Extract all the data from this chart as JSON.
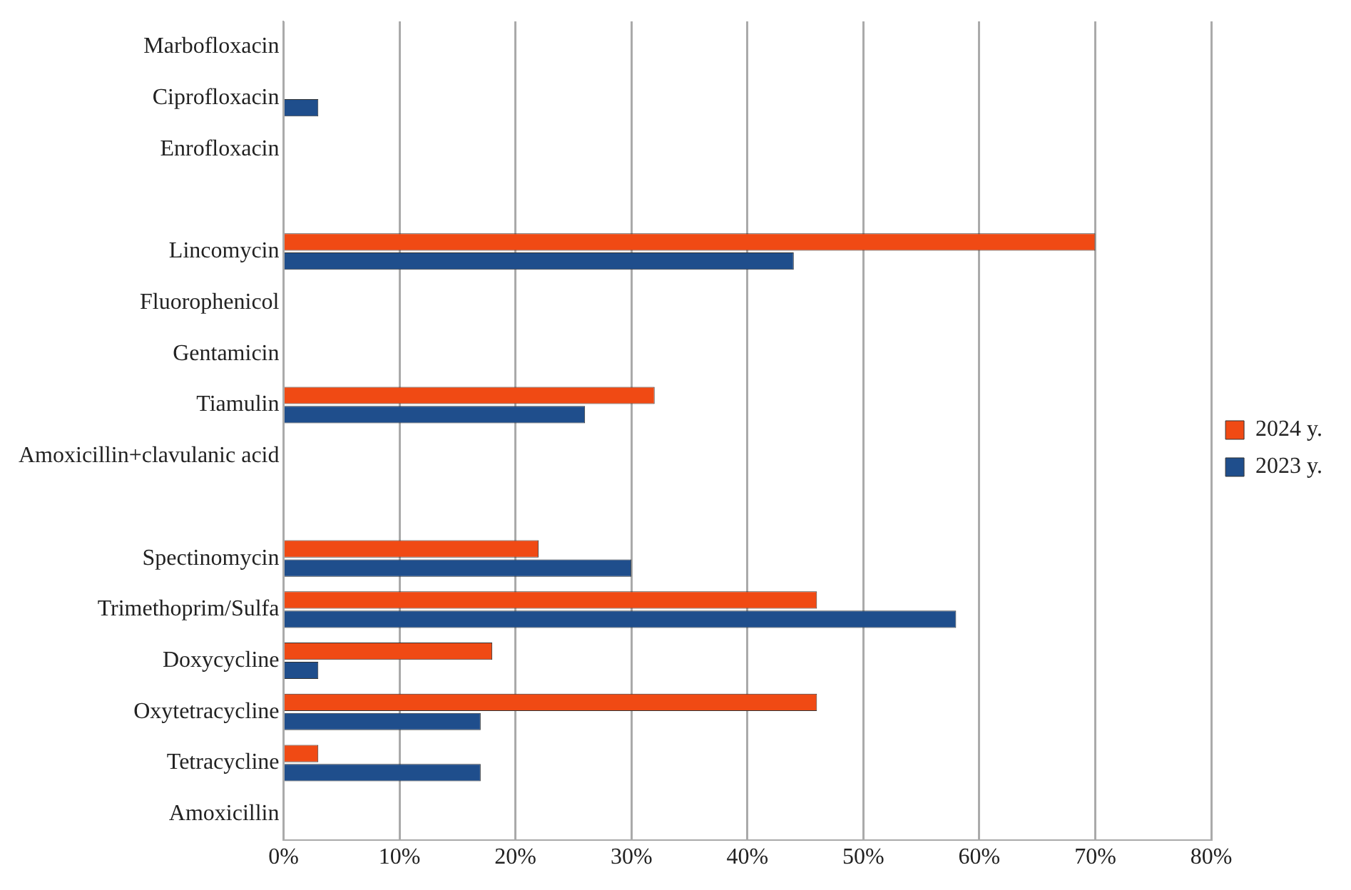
{
  "chart_data": {
    "type": "bar",
    "orientation": "horizontal",
    "categories": [
      "Marbofloxacin",
      "Ciprofloxacin",
      "Enrofloxacin",
      null,
      "Lincomycin",
      "Fluorophenicol",
      "Gentamicin",
      "Tiamulin",
      "Amoxicillin+clavulanic acid",
      null,
      "Spectinomycin",
      "Trimethoprim/Sulfa",
      "Doxycycline",
      "Oxytetracycline",
      "Tetracycline",
      "Amoxicillin"
    ],
    "series": [
      {
        "name": "2024 y.",
        "color": "#f04a14",
        "values": [
          0,
          0,
          0,
          null,
          70,
          0,
          0,
          32,
          0,
          null,
          22,
          46,
          18,
          46,
          3,
          0
        ]
      },
      {
        "name": "2023 y.",
        "color": "#1f4e8c",
        "values": [
          0,
          3,
          0,
          null,
          44,
          0,
          0,
          26,
          0,
          null,
          30,
          58,
          3,
          17,
          17,
          0
        ]
      }
    ],
    "xlim": [
      0,
      80
    ],
    "xticks": [
      {
        "value": 0,
        "label": "0%"
      },
      {
        "value": 10,
        "label": "10%"
      },
      {
        "value": 20,
        "label": "20%"
      },
      {
        "value": 30,
        "label": "30%"
      },
      {
        "value": 40,
        "label": "40%"
      },
      {
        "value": 50,
        "label": "50%"
      },
      {
        "value": 60,
        "label": "60%"
      },
      {
        "value": 70,
        "label": "70%"
      },
      {
        "value": 80,
        "label": "80%"
      }
    ],
    "grid": "x",
    "legend": "right"
  }
}
